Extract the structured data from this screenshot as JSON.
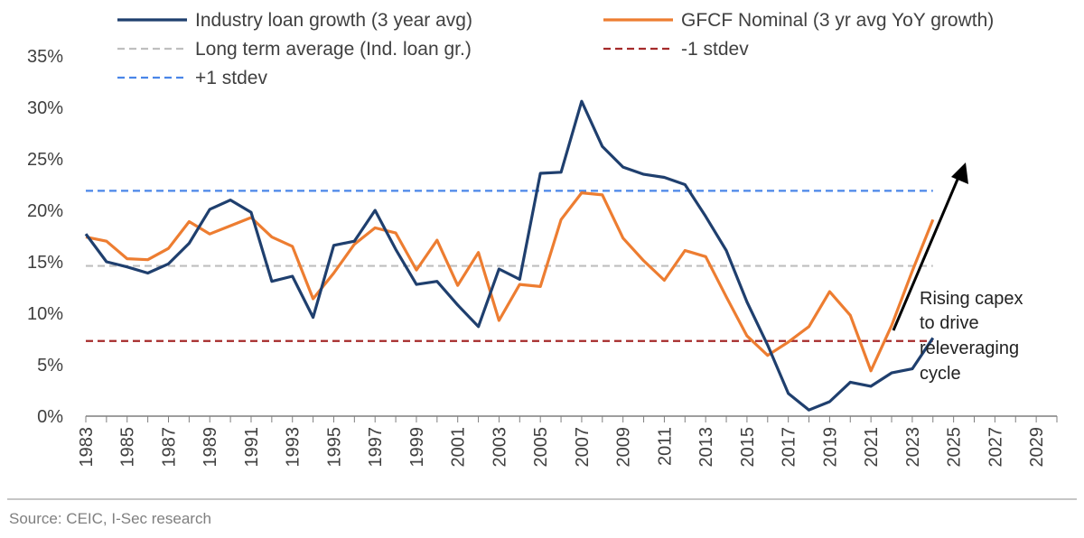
{
  "chart_data": {
    "type": "line",
    "title": "",
    "xlabel": "",
    "ylabel": "",
    "x": [
      1983,
      1984,
      1985,
      1986,
      1987,
      1988,
      1989,
      1990,
      1991,
      1992,
      1993,
      1994,
      1995,
      1996,
      1997,
      1998,
      1999,
      2000,
      2001,
      2002,
      2003,
      2004,
      2005,
      2006,
      2007,
      2008,
      2009,
      2010,
      2011,
      2012,
      2013,
      2014,
      2015,
      2016,
      2017,
      2018,
      2019,
      2020,
      2021,
      2022,
      2023,
      2024
    ],
    "xlim": [
      1983,
      2030
    ],
    "x_ticks": [
      "1983",
      "1985",
      "1987",
      "1989",
      "1991",
      "1993",
      "1995",
      "1997",
      "1999",
      "2001",
      "2003",
      "2005",
      "2007",
      "2009",
      "2011",
      "2013",
      "2015",
      "2017",
      "2019",
      "2021",
      "2023",
      "2025",
      "2027",
      "2029"
    ],
    "ylim": [
      0,
      35
    ],
    "y_ticks": [
      "0%",
      "5%",
      "10%",
      "15%",
      "20%",
      "25%",
      "30%",
      "35%"
    ],
    "series": [
      {
        "name": "Industry loan growth (3 year  avg)",
        "color": "#1f3f6e",
        "style": "solid",
        "values": [
          17.7,
          15.0,
          14.5,
          13.9,
          14.8,
          16.8,
          20.1,
          21.0,
          19.8,
          13.1,
          13.6,
          9.6,
          16.6,
          17.0,
          20.0,
          16.2,
          12.8,
          13.1,
          10.8,
          8.7,
          14.3,
          13.3,
          23.6,
          23.7,
          30.6,
          26.2,
          24.2,
          23.5,
          23.2,
          22.5,
          19.4,
          16.1,
          11.1,
          6.9,
          2.2,
          0.6,
          1.4,
          3.3,
          2.9,
          4.2,
          4.6,
          7.6
        ]
      },
      {
        "name": "GFCF Nominal (3 yr avg YoY growth)",
        "color": "#ed7d31",
        "style": "solid",
        "values": [
          17.4,
          17.0,
          15.3,
          15.2,
          16.3,
          18.9,
          17.7,
          18.5,
          19.3,
          17.4,
          16.5,
          11.4,
          13.9,
          16.7,
          18.3,
          17.8,
          14.2,
          17.1,
          12.7,
          15.9,
          9.3,
          12.8,
          12.6,
          19.1,
          21.7,
          21.5,
          17.3,
          15.1,
          13.2,
          16.1,
          15.5,
          11.6,
          7.8,
          5.9,
          7.2,
          8.7,
          12.1,
          9.8,
          4.4,
          8.8,
          14.1,
          19.1
        ]
      },
      {
        "name": "Long term average (Ind. loan gr.)",
        "color": "#bfbfbf",
        "style": "dashed",
        "value": 14.6
      },
      {
        "name": "-1 stdev",
        "color": "#a52a2a",
        "style": "dashed",
        "value": 7.3
      },
      {
        "name": "+1 stdev",
        "color": "#4a86e8",
        "style": "dashed",
        "value": 21.9
      }
    ],
    "annotation": {
      "lines": [
        "Rising capex",
        "to drive",
        "releveraging",
        "cycle"
      ]
    }
  },
  "source": "Source: CEIC, I-Sec research"
}
